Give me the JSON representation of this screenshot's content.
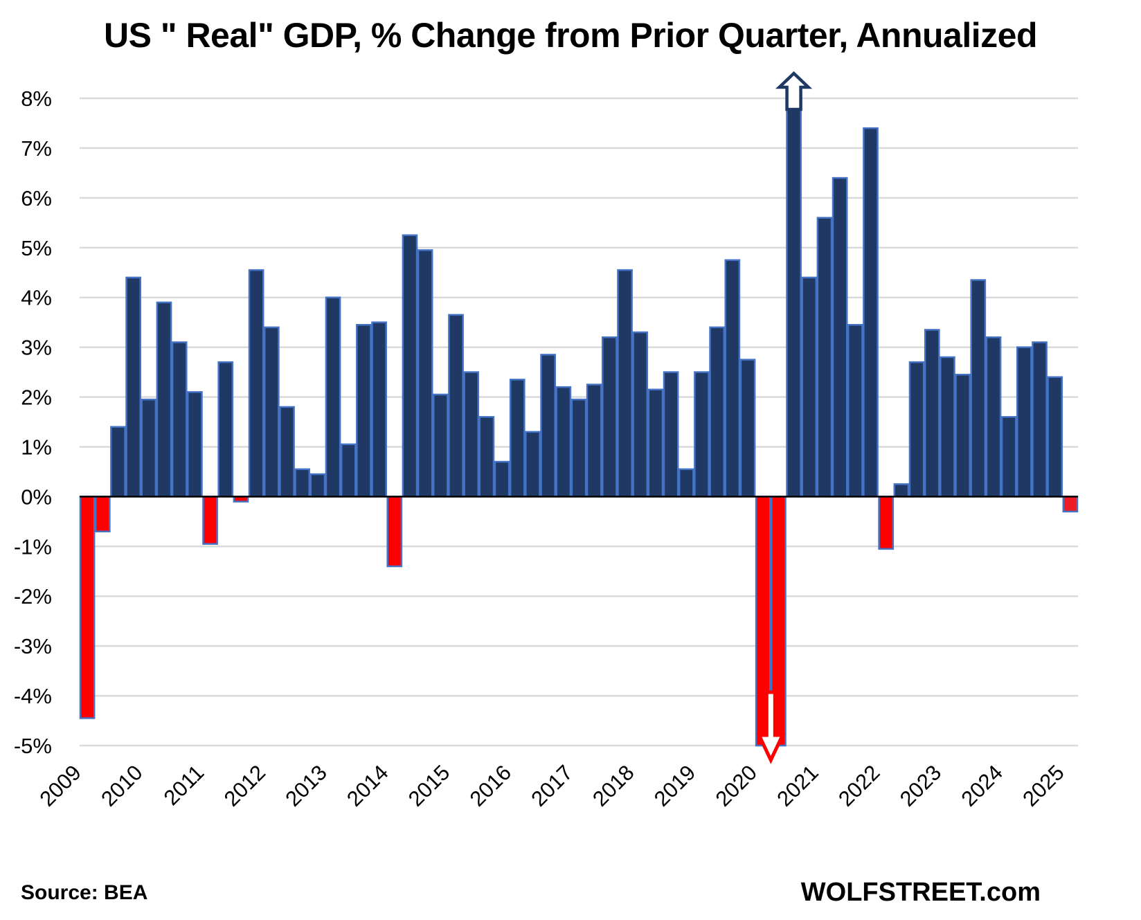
{
  "header": {
    "title": "US \" Real\"  GDP, % Change from Prior Quarter, Annualized"
  },
  "footer": {
    "source": "Source: BEA",
    "brand": "WOLFSTREET.com"
  },
  "colors": {
    "positive": "#1F3864",
    "negative": "#FF0000",
    "latest_negative": "#ED1C24",
    "bar_border": "#4472C4",
    "grid": "#D9D9D9",
    "axis": "#000000",
    "up_arrow": "#1F3864",
    "down_arrow": "#FF0000"
  },
  "chart_data": {
    "type": "bar",
    "title": "US \" Real\"  GDP, % Change from Prior Quarter, Annualized",
    "xlabel": "",
    "ylabel": "",
    "ylim": [
      -5,
      8
    ],
    "yticks": [
      8,
      7,
      6,
      5,
      4,
      3,
      2,
      1,
      0,
      -1,
      -2,
      -3,
      -4,
      -5
    ],
    "ytick_labels": [
      "8%",
      "7%",
      "6%",
      "5%",
      "4%",
      "3%",
      "2%",
      "1%",
      "0%",
      "-1%",
      "-2%",
      "-3%",
      "-4%",
      "-5%"
    ],
    "xtick_labels": [
      "2009",
      "2010",
      "2011",
      "2012",
      "2013",
      "2014",
      "2015",
      "2016",
      "2017",
      "2018",
      "2019",
      "2020",
      "2021",
      "2022",
      "2023",
      "2024",
      "2025"
    ],
    "grid": true,
    "legend": "none",
    "categories": [
      "2009Q1",
      "2009Q2",
      "2009Q3",
      "2009Q4",
      "2010Q1",
      "2010Q2",
      "2010Q3",
      "2010Q4",
      "2011Q1",
      "2011Q2",
      "2011Q3",
      "2011Q4",
      "2012Q1",
      "2012Q2",
      "2012Q3",
      "2012Q4",
      "2013Q1",
      "2013Q2",
      "2013Q3",
      "2013Q4",
      "2014Q1",
      "2014Q2",
      "2014Q3",
      "2014Q4",
      "2015Q1",
      "2015Q2",
      "2015Q3",
      "2015Q4",
      "2016Q1",
      "2016Q2",
      "2016Q3",
      "2016Q4",
      "2017Q1",
      "2017Q2",
      "2017Q3",
      "2017Q4",
      "2018Q1",
      "2018Q2",
      "2018Q3",
      "2018Q4",
      "2019Q1",
      "2019Q2",
      "2019Q3",
      "2019Q4",
      "2020Q1",
      "2020Q2",
      "2020Q3",
      "2020Q4",
      "2021Q1",
      "2021Q2",
      "2021Q3",
      "2021Q4",
      "2022Q1",
      "2022Q2",
      "2022Q3",
      "2022Q4",
      "2023Q1",
      "2023Q2",
      "2023Q3",
      "2023Q4",
      "2024Q1",
      "2024Q2",
      "2024Q3",
      "2024Q4",
      "2025Q1"
    ],
    "values": [
      -4.45,
      -0.7,
      1.4,
      4.4,
      1.95,
      3.9,
      3.1,
      2.1,
      -0.95,
      2.7,
      -0.1,
      4.55,
      3.4,
      1.8,
      0.55,
      0.45,
      4.0,
      1.05,
      3.45,
      3.5,
      -1.4,
      5.25,
      4.95,
      2.05,
      3.65,
      2.5,
      1.6,
      0.7,
      2.35,
      1.3,
      2.85,
      2.2,
      1.95,
      2.25,
      3.2,
      4.55,
      3.3,
      2.15,
      2.5,
      0.55,
      2.5,
      3.4,
      4.75,
      2.75,
      -5,
      -5,
      8,
      4.4,
      5.6,
      6.4,
      3.45,
      7.4,
      -1.05,
      0.25,
      2.7,
      3.35,
      2.8,
      2.45,
      4.35,
      3.2,
      1.6,
      3.0,
      3.1,
      2.4,
      -0.3
    ],
    "annotations": [
      {
        "category": "2020Q3",
        "type": "up-arrow",
        "note": "value exceeds axis maximum (8%)"
      },
      {
        "category": "2020Q2",
        "type": "down-arrow",
        "note": "value below axis minimum (-5%)"
      }
    ]
  }
}
